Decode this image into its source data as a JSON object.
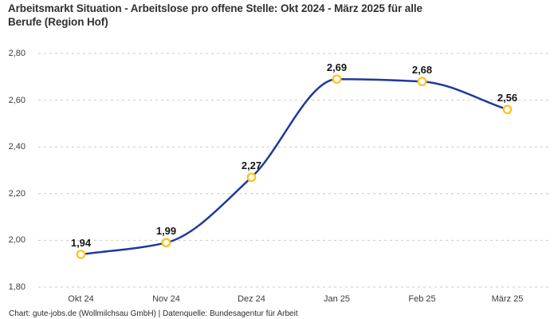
{
  "header": {
    "title_lines": [
      "Arbeitsmarkt Situation - Arbeitslose pro offene Stelle: Okt 2024 - März 2025 für alle",
      "Berufe (Region Hof)"
    ]
  },
  "footer": {
    "attribution": "Chart: gute-jobs.de (Wollmilchsau GmbH) | Datenquelle: Bundesagentur für Arbeit"
  },
  "chart_data": {
    "type": "line",
    "title": "Arbeitsmarkt Situation - Arbeitslose pro offene Stelle: Okt 2024 - März 2025 für alle Berufe (Region Hof)",
    "categories": [
      "Okt 24",
      "Nov 24",
      "Dez 24",
      "Jan 25",
      "Feb 25",
      "März 25"
    ],
    "values": [
      1.94,
      1.99,
      2.27,
      2.69,
      2.68,
      2.56
    ],
    "value_labels": [
      "1,94",
      "1,99",
      "2,27",
      "2,69",
      "2,68",
      "2,56"
    ],
    "y_ticks": [
      {
        "value": 1.8,
        "label": "1,80"
      },
      {
        "value": 2.0,
        "label": "2,00"
      },
      {
        "value": 2.2,
        "label": "2,20"
      },
      {
        "value": 2.4,
        "label": "2,40"
      },
      {
        "value": 2.6,
        "label": "2,60"
      },
      {
        "value": 2.8,
        "label": "2,80"
      }
    ],
    "ylim": [
      1.8,
      2.8
    ],
    "xlabel": "",
    "ylabel": "",
    "grid": "horizontal-dashed",
    "legend": "none",
    "curve": "monotone",
    "colors": {
      "line": "#20399d",
      "marker_stroke": "#fcc527",
      "marker_fill": "#ffffff",
      "grid": "#c9c9c9",
      "title_text": "#303030",
      "axis_text": "#3c3c3c",
      "value_label_text": "#141414"
    }
  }
}
